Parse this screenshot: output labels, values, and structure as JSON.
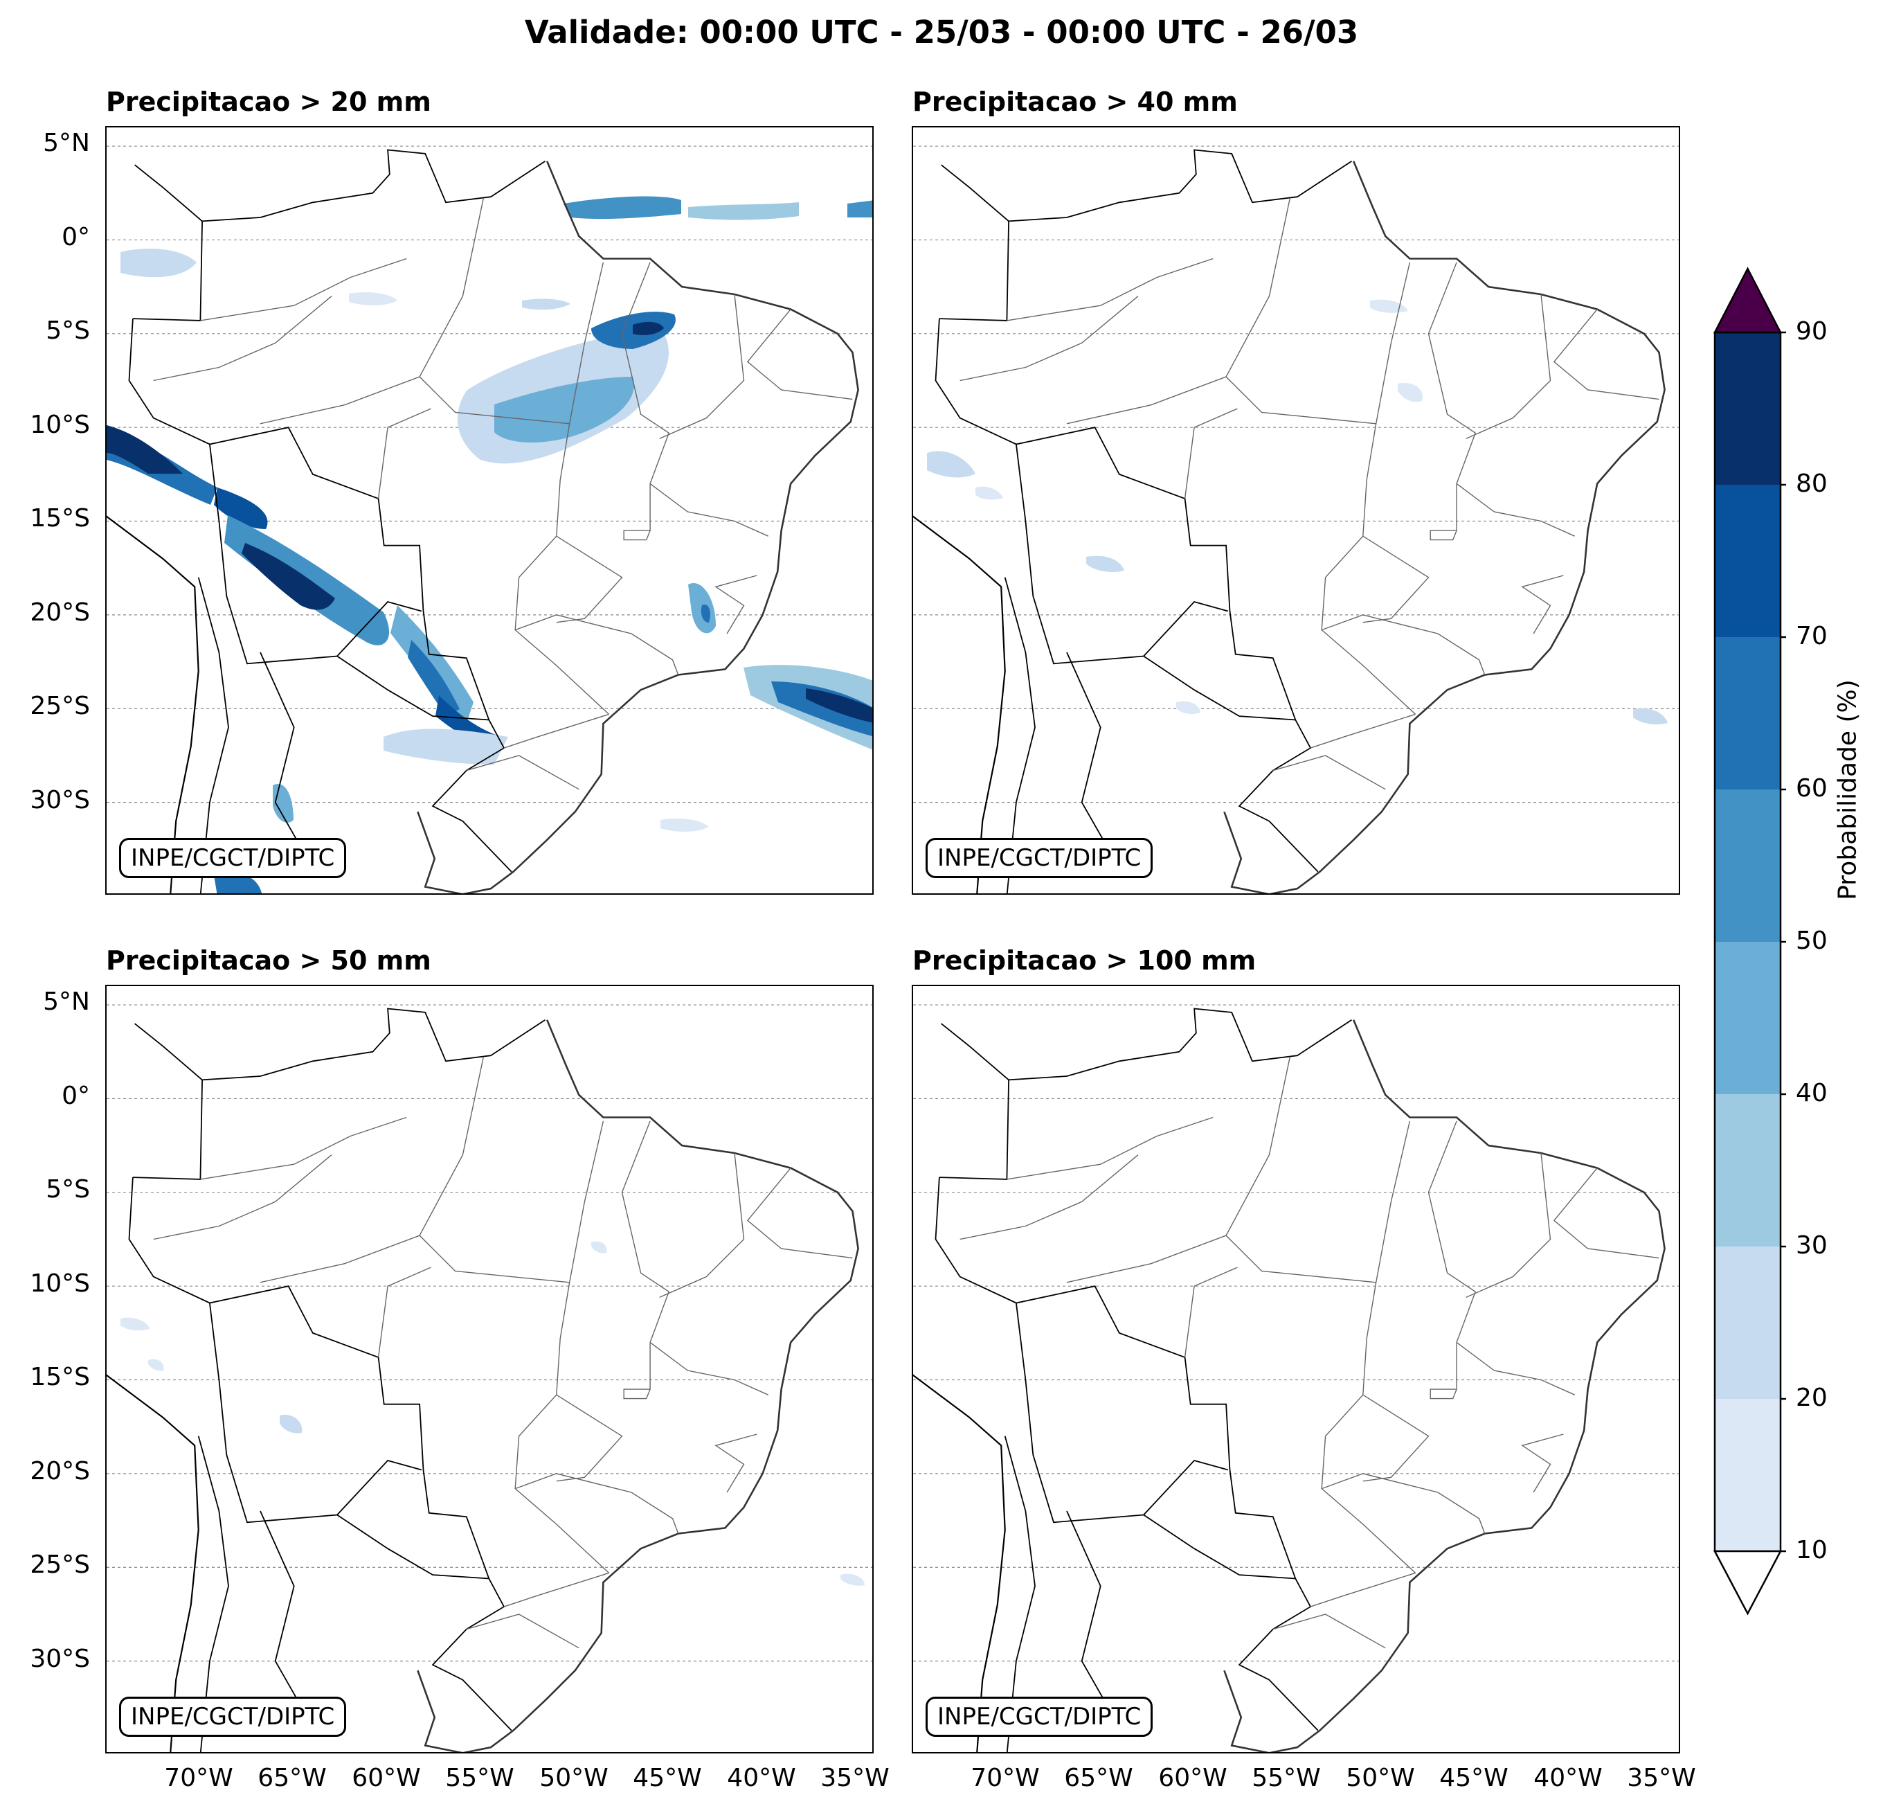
{
  "title": "Validade: 00:00 UTC - 25/03 - 00:00 UTC - 26/03",
  "credit": "INPE/CGCT/DIPTC",
  "panels": [
    {
      "title": "Precipitacao > 20 mm"
    },
    {
      "title": "Precipitacao > 40 mm"
    },
    {
      "title": "Precipitacao > 50 mm"
    },
    {
      "title": "Precipitacao > 100 mm"
    }
  ],
  "lat_labels": [
    "5°N",
    "0°",
    "5°S",
    "10°S",
    "15°S",
    "20°S",
    "25°S",
    "30°S"
  ],
  "lon_labels": [
    "70°W",
    "65°W",
    "60°W",
    "55°W",
    "50°W",
    "45°W",
    "40°W",
    "35°W"
  ],
  "colorbar": {
    "label": "Probabilidade (%)",
    "ticks": [
      "10",
      "20",
      "30",
      "40",
      "50",
      "60",
      "70",
      "80",
      "90"
    ],
    "colors": [
      "#dce8f5",
      "#c6dbef",
      "#9ecae1",
      "#6baed6",
      "#4292c6",
      "#2171b5",
      "#08519c",
      "#08306b"
    ],
    "over_color": "#4a0048"
  }
}
